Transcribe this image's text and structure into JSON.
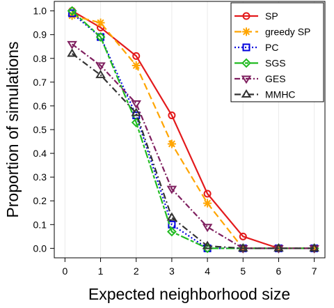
{
  "chart_data": {
    "type": "line",
    "title": "",
    "xlabel": "Expected neighborhood size",
    "ylabel": "Proportion of simulations",
    "xlim": [
      -0.3,
      7.3
    ],
    "ylim": [
      -0.04,
      1.04
    ],
    "x_ticks": [
      0,
      1,
      2,
      3,
      4,
      5,
      6,
      7
    ],
    "y_ticks": [
      0.0,
      0.1,
      0.2,
      0.3,
      0.4,
      0.5,
      0.6,
      0.7,
      0.8,
      0.9,
      1.0
    ],
    "y_tick_labels": [
      "0.0",
      "0.1",
      "0.2",
      "0.3",
      "0.4",
      "0.5",
      "0.6",
      "0.7",
      "0.8",
      "0.9",
      "1.0"
    ],
    "x_tick_labels": [
      "0",
      "1",
      "2",
      "3",
      "4",
      "5",
      "6",
      "7"
    ],
    "x": [
      0.2,
      1,
      2,
      3,
      4,
      5,
      6,
      7
    ],
    "grid": "vertical",
    "legend_position": "top-right",
    "series": [
      {
        "name": "SP",
        "values": [
          1.0,
          0.93,
          0.81,
          0.56,
          0.23,
          0.05,
          0.0,
          0.0
        ],
        "color": "#e31a1c",
        "dash": "solid",
        "marker": "circle"
      },
      {
        "name": "greedy SP",
        "values": [
          0.98,
          0.95,
          0.77,
          0.44,
          0.19,
          0.0,
          0.0,
          0.0
        ],
        "color": "#ffa500",
        "dash": "longdash",
        "marker": "asterisk"
      },
      {
        "name": "PC",
        "values": [
          0.99,
          0.89,
          0.56,
          0.1,
          0.0,
          0.0,
          0.0,
          0.0
        ],
        "color": "#0000dd",
        "dash": "dotted",
        "marker": "square"
      },
      {
        "name": "SGS",
        "values": [
          1.0,
          0.89,
          0.53,
          0.07,
          0.0,
          0.0,
          0.0,
          0.0
        ],
        "color": "#22bb22",
        "dash": "twodash",
        "marker": "diamond"
      },
      {
        "name": "GES",
        "values": [
          0.86,
          0.77,
          0.61,
          0.25,
          0.09,
          0.0,
          0.0,
          0.0
        ],
        "color": "#7f1f5f",
        "dash": "dotdash",
        "marker": "triangle-down"
      },
      {
        "name": "MMHC",
        "values": [
          0.82,
          0.73,
          0.57,
          0.13,
          0.01,
          0.0,
          0.0,
          0.0
        ],
        "color": "#333333",
        "dash": "dashdot",
        "marker": "triangle-up"
      }
    ]
  }
}
